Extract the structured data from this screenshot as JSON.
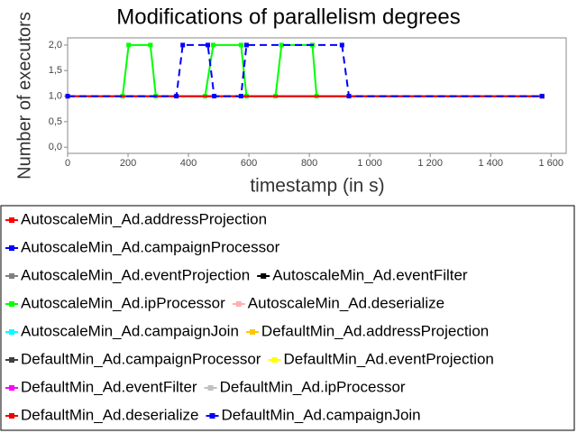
{
  "chart_data": {
    "type": "line",
    "title": "Modifications of parallelism degrees",
    "x_label": "timestamp (in s)",
    "y_label": "Number of executors",
    "xlim": [
      0,
      1650
    ],
    "ylim": [
      -0.12,
      2.14
    ],
    "xticks": [
      0,
      200,
      400,
      600,
      800,
      {
        "value": 1000,
        "label": "1 000"
      },
      {
        "value": 1200,
        "label": "1 200"
      },
      {
        "value": 1400,
        "label": "1 400"
      },
      {
        "value": 1600,
        "label": "1 600"
      }
    ],
    "yticks": [
      {
        "value": 0,
        "label": "0,0"
      },
      {
        "value": 0.5,
        "label": "0,5"
      },
      {
        "value": 1,
        "label": "1,0"
      },
      {
        "value": 1.5,
        "label": "1,5"
      },
      {
        "value": 2,
        "label": "2,0"
      }
    ],
    "series": [
      {
        "name": "AutoscaleMin_Ad.addressProjection",
        "color": "#ff0000",
        "x": [
          0,
          1570
        ],
        "values": [
          1,
          1
        ]
      },
      {
        "name": "AutoscaleMin_Ad.campaignProcessor",
        "color": "#0000ff",
        "x": [
          0,
          1570
        ],
        "values": [
          1,
          1
        ]
      },
      {
        "name": "AutoscaleMin_Ad.eventProjection",
        "color": "#808080",
        "x": [
          0,
          1570
        ],
        "values": [
          1,
          1
        ]
      },
      {
        "name": "AutoscaleMin_Ad.eventFilter",
        "color": "#000000",
        "x": [
          0,
          1570
        ],
        "values": [
          1,
          1
        ]
      },
      {
        "name": "AutoscaleMin_Ad.ipProcessor",
        "color": "#00ff00",
        "x": [
          0,
          182,
          202,
          274,
          292,
          455,
          482,
          574,
          592,
          688,
          708,
          810,
          824,
          1570
        ],
        "values": [
          1,
          1,
          2,
          2,
          1,
          1,
          2,
          2,
          1,
          1,
          2,
          2,
          1,
          1
        ]
      },
      {
        "name": "AutoscaleMin_Ad.deserialize",
        "color": "#ffafaf",
        "x": [
          0,
          1570
        ],
        "values": [
          1,
          1
        ]
      },
      {
        "name": "AutoscaleMin_Ad.campaignJoin",
        "color": "#00ffff",
        "x": [
          0,
          1570
        ],
        "values": [
          1,
          1
        ]
      },
      {
        "name": "DefaultMin_Ad.addressProjection",
        "color": "#ffc800",
        "x": [
          0,
          1570
        ],
        "values": [
          1,
          1
        ]
      },
      {
        "name": "DefaultMin_Ad.campaignProcessor",
        "color": "#404040",
        "x": [
          0,
          1570
        ],
        "values": [
          1,
          1
        ]
      },
      {
        "name": "DefaultMin_Ad.eventProjection",
        "color": "#ffff00",
        "x": [
          0,
          1570
        ],
        "values": [
          1,
          1
        ]
      },
      {
        "name": "DefaultMin_Ad.eventFilter",
        "color": "#ff00ff",
        "x": [
          0,
          1570
        ],
        "values": [
          1,
          1
        ]
      },
      {
        "name": "DefaultMin_Ad.ipProcessor",
        "color": "#c0c0c0",
        "x": [
          0,
          1570
        ],
        "values": [
          1,
          1
        ]
      },
      {
        "name": "DefaultMin_Ad.deserialize",
        "color": "#ee0000",
        "x": [
          0,
          1570
        ],
        "values": [
          1,
          1
        ]
      },
      {
        "name": "DefaultMin_Ad.campaignJoin",
        "color": "#0000ff",
        "dashed": true,
        "x": [
          0,
          360,
          381,
          464,
          485,
          574,
          592,
          908,
          931,
          1570
        ],
        "values": [
          1,
          1,
          2,
          2,
          1,
          1,
          2,
          2,
          1,
          1
        ]
      }
    ]
  }
}
